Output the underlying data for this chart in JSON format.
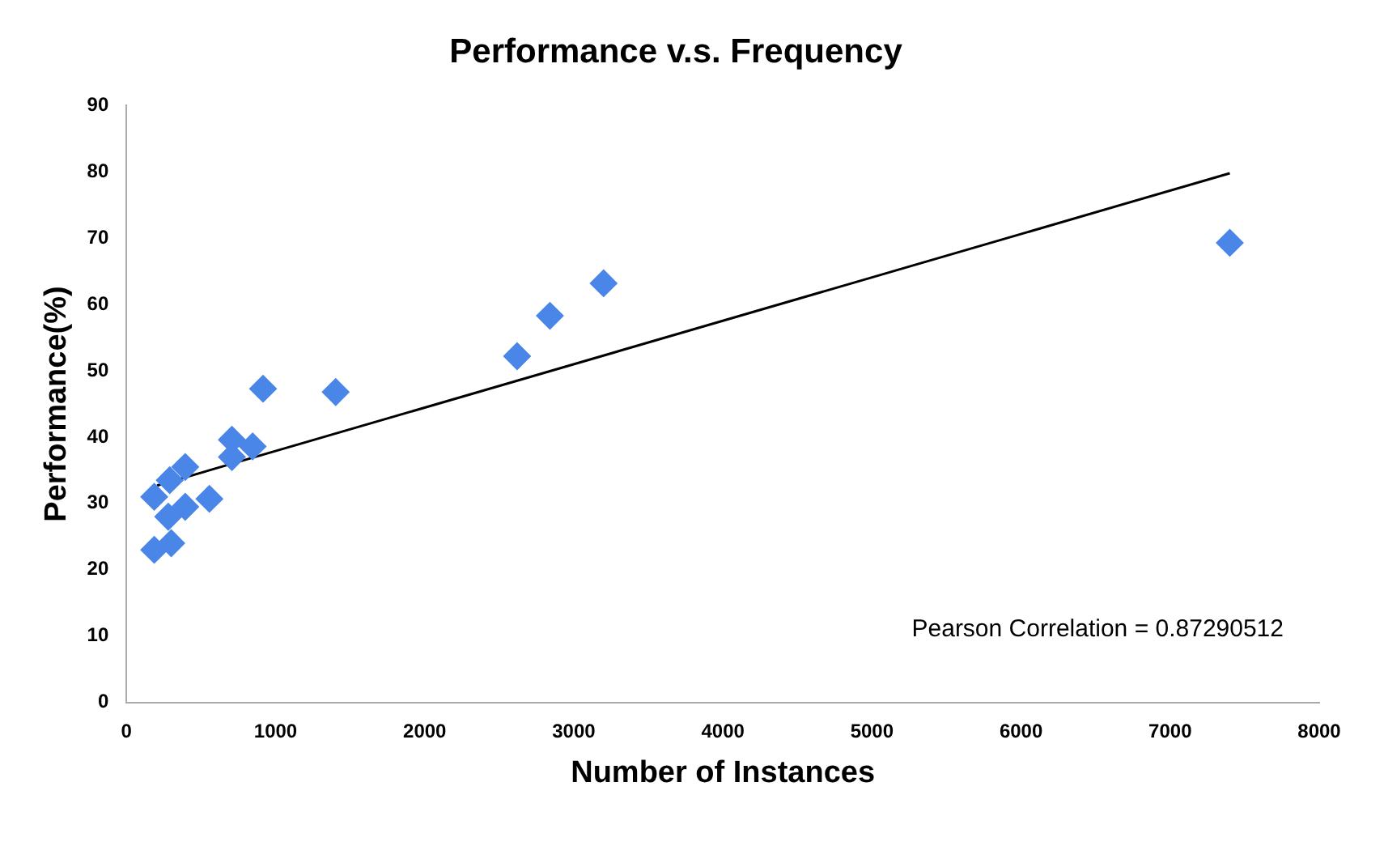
{
  "chart_data": {
    "type": "scatter",
    "title": "Performance v.s. Frequency",
    "xlabel": "Number of Instances",
    "ylabel": "Performance(%)",
    "xlim": [
      0,
      8000
    ],
    "xticks": [
      0,
      1000,
      2000,
      3000,
      4000,
      5000,
      6000,
      7000,
      8000
    ],
    "ylim": [
      0,
      90
    ],
    "yticks": [
      0,
      10,
      20,
      30,
      40,
      50,
      60,
      70,
      80,
      90
    ],
    "grid": false,
    "legend": false,
    "marker": "diamond",
    "annotations": [
      "Pearson Correlation = 0.87290512"
    ],
    "series": [
      {
        "color": "#4a86e8",
        "x": [
          186,
          186,
          300,
          280,
          290,
          394,
          394,
          556,
          707,
          707,
          846,
          916,
          1403,
          2620,
          2840,
          3200,
          7400
        ],
        "values": [
          31,
          23,
          24,
          28,
          33.5,
          35.5,
          29.5,
          30.7,
          39.6,
          37,
          38.6,
          47.3,
          46.8,
          52.2,
          58.3,
          63.2,
          69.3
        ]
      },
      {
        "type": "line",
        "color": "#000000",
        "x": [
          205,
          7400
        ],
        "values": [
          32.7,
          79.8
        ],
        "marker": "none"
      }
    ]
  }
}
